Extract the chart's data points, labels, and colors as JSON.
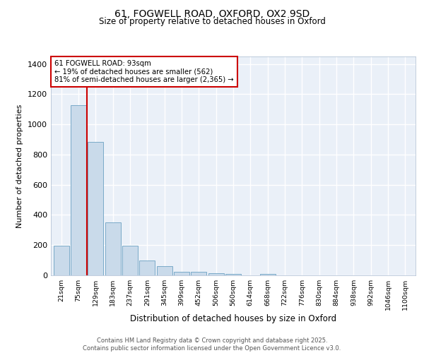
{
  "title1": "61, FOGWELL ROAD, OXFORD, OX2 9SD",
  "title2": "Size of property relative to detached houses in Oxford",
  "xlabel": "Distribution of detached houses by size in Oxford",
  "ylabel": "Number of detached properties",
  "bar_color": "#c9daea",
  "bar_edge_color": "#7aaac8",
  "vline_color": "#cc0000",
  "vline_x_index": 1.5,
  "annotation_title": "61 FOGWELL ROAD: 93sqm",
  "annotation_line2": "← 19% of detached houses are smaller (562)",
  "annotation_line3": "81% of semi-detached houses are larger (2,365) →",
  "annotation_box_color": "#cc0000",
  "categories": [
    "21sqm",
    "75sqm",
    "129sqm",
    "183sqm",
    "237sqm",
    "291sqm",
    "345sqm",
    "399sqm",
    "452sqm",
    "506sqm",
    "560sqm",
    "614sqm",
    "668sqm",
    "722sqm",
    "776sqm",
    "830sqm",
    "884sqm",
    "938sqm",
    "992sqm",
    "1046sqm",
    "1100sqm"
  ],
  "values": [
    195,
    1125,
    885,
    350,
    195,
    100,
    60,
    25,
    22,
    15,
    8,
    0,
    10,
    0,
    0,
    0,
    0,
    0,
    0,
    0,
    0
  ],
  "ylim": [
    0,
    1450
  ],
  "yticks": [
    0,
    200,
    400,
    600,
    800,
    1000,
    1200,
    1400
  ],
  "bg_color": "#eaf0f8",
  "grid_color": "#ffffff",
  "footer1": "Contains HM Land Registry data © Crown copyright and database right 2025.",
  "footer2": "Contains public sector information licensed under the Open Government Licence v3.0."
}
